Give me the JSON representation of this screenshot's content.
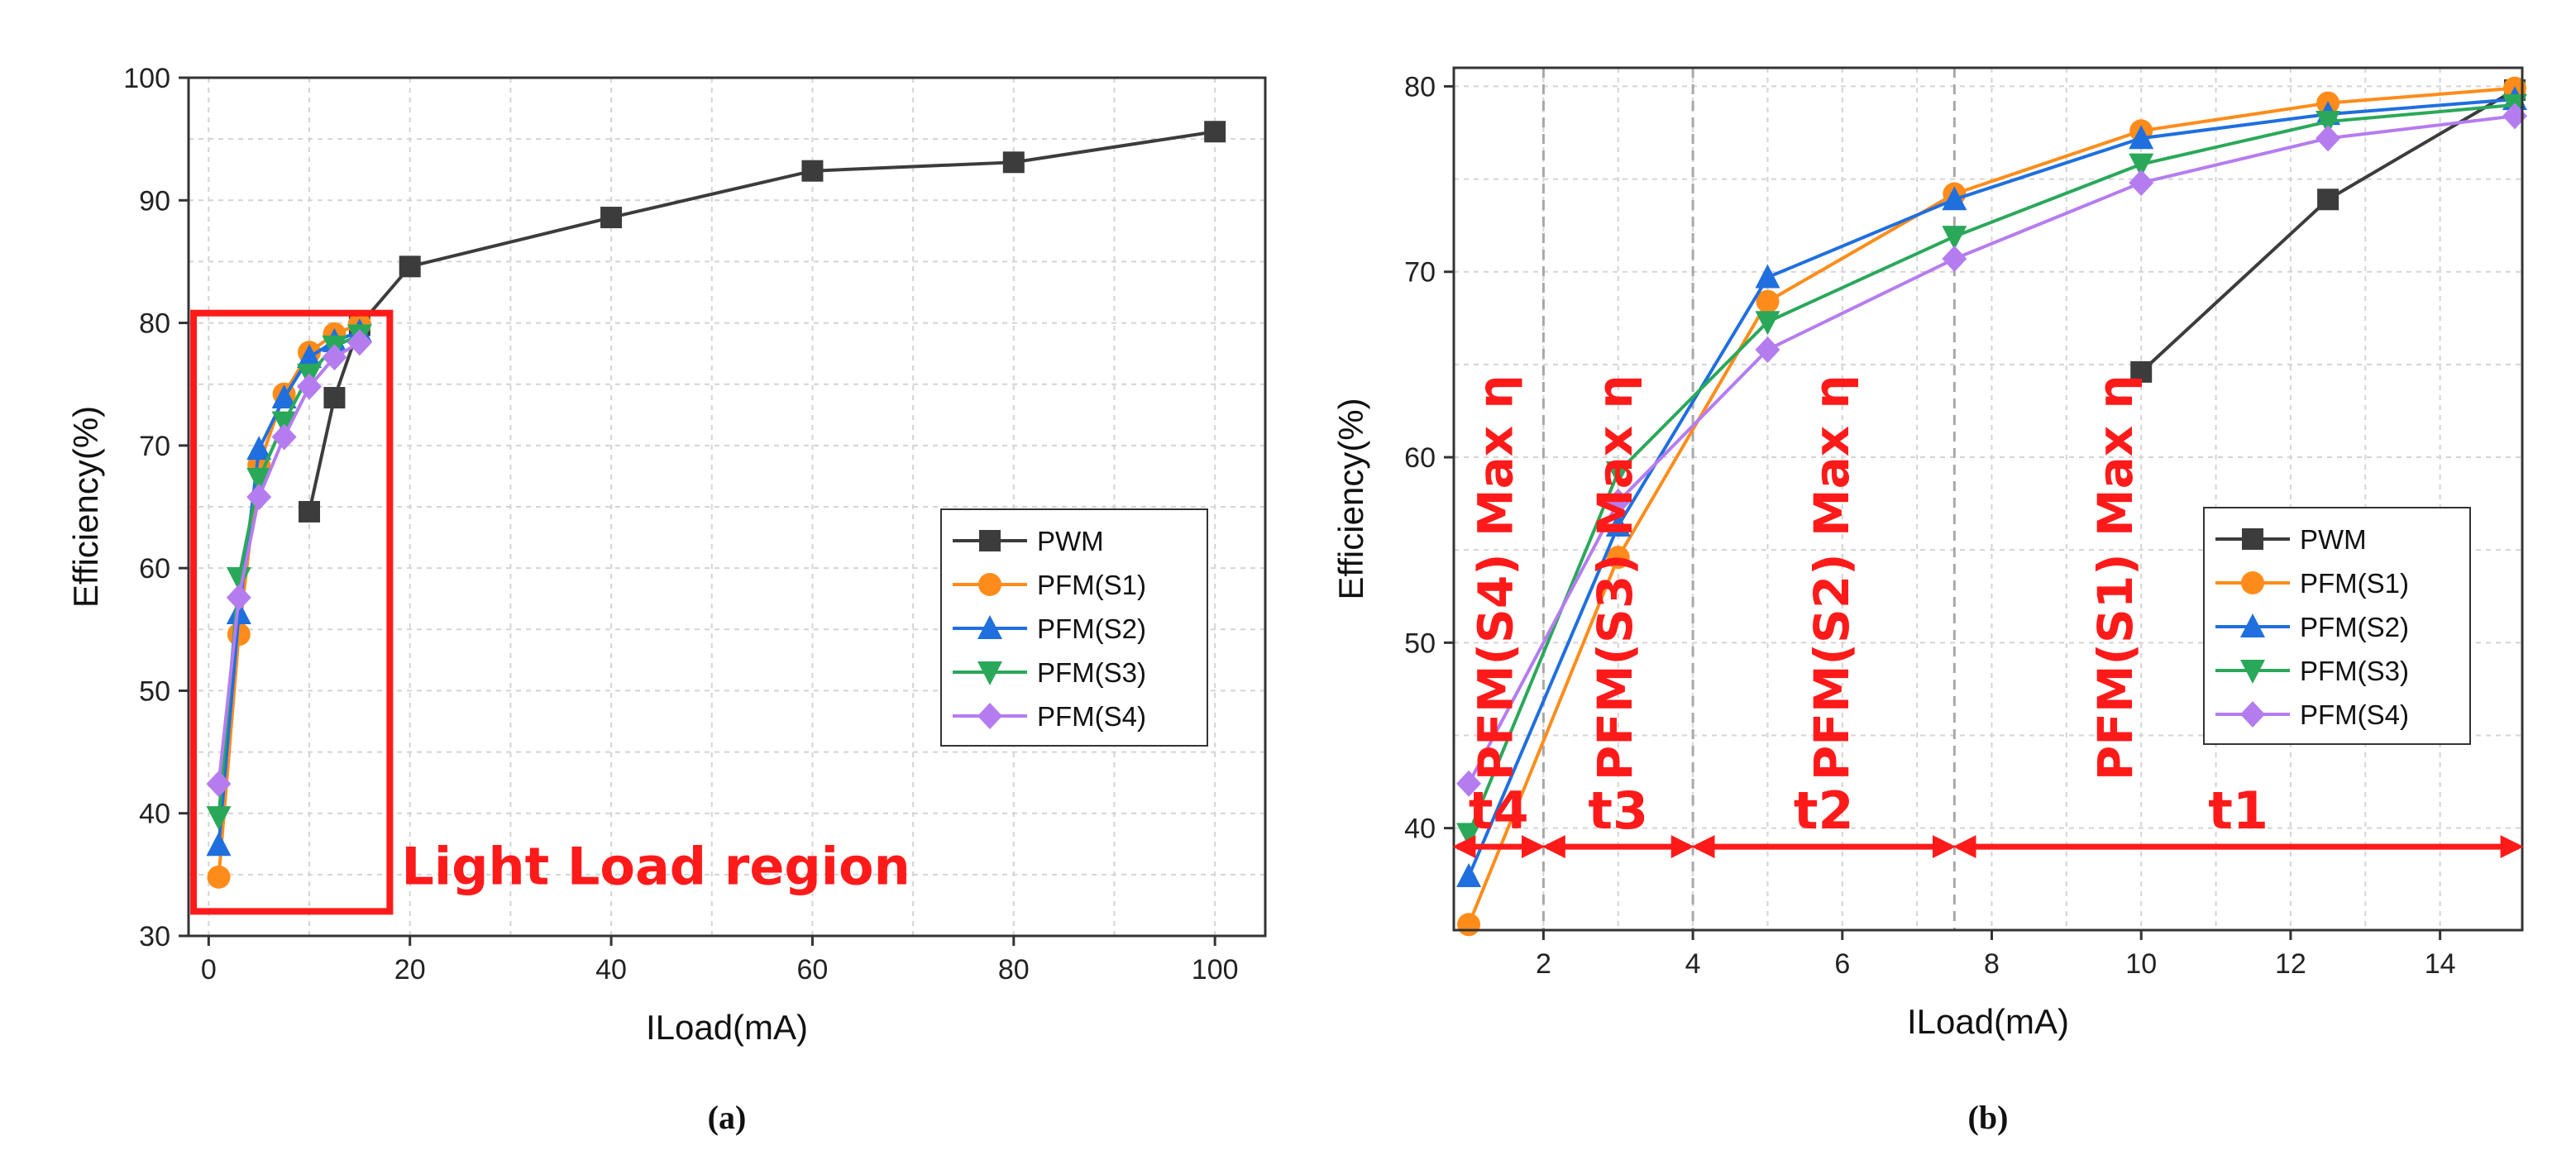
{
  "colors": {
    "PWM": "#3c3c3c",
    "PFM(S1)": "#ff8c1a",
    "PFM(S2)": "#1f6fdf",
    "PFM(S3)": "#2aa85a",
    "PFM(S4)": "#b57cf0",
    "annotation": "#ff1a1a"
  },
  "markers": {
    "PWM": "square",
    "PFM(S1)": "circle",
    "PFM(S2)": "triangle-up",
    "PFM(S3)": "triangle-down",
    "PFM(S4)": "diamond"
  },
  "chart_data": [
    {
      "type": "line",
      "caption": "(a)",
      "xlabel": "ILoad(mA)",
      "ylabel": "Efficiency(%)",
      "xlim": [
        -2,
        105
      ],
      "ylim": [
        30,
        100
      ],
      "xticks": [
        0,
        20,
        40,
        60,
        80,
        100
      ],
      "yticks": [
        30,
        40,
        50,
        60,
        70,
        80,
        90,
        100
      ],
      "grid": true,
      "legend": "center-right",
      "series": [
        {
          "name": "PWM",
          "x": [
            10,
            12.5,
            15,
            20,
            40,
            60,
            80,
            100
          ],
          "y": [
            64.6,
            73.9,
            79.8,
            84.6,
            88.6,
            92.4,
            93.1,
            95.6
          ]
        },
        {
          "name": "PFM(S1)",
          "x": [
            1,
            3,
            5,
            7.5,
            10,
            12.5,
            15
          ],
          "y": [
            34.8,
            54.6,
            68.4,
            74.2,
            77.6,
            79.1,
            79.9
          ]
        },
        {
          "name": "PFM(S2)",
          "x": [
            1,
            3,
            5,
            7.5,
            10,
            12.5,
            15
          ],
          "y": [
            37.4,
            56.3,
            69.7,
            73.9,
            77.2,
            78.5,
            79.3
          ]
        },
        {
          "name": "PFM(S3)",
          "x": [
            1,
            3,
            5,
            7.5,
            10,
            12.5,
            15
          ],
          "y": [
            39.7,
            59.2,
            67.3,
            71.9,
            75.8,
            78.1,
            79.0
          ]
        },
        {
          "name": "PFM(S4)",
          "x": [
            1,
            3,
            5,
            7.5,
            10,
            12.5,
            15
          ],
          "y": [
            42.4,
            57.6,
            65.8,
            70.7,
            74.8,
            77.2,
            78.4
          ]
        }
      ],
      "annotations": {
        "region_label": "Light Load region",
        "region_x": [
          -1.5,
          18
        ],
        "region_y": [
          32,
          80.8
        ]
      }
    },
    {
      "type": "line",
      "caption": "(b)",
      "xlabel": "ILoad(mA)",
      "ylabel": "Efficiency(%)",
      "xlim": [
        0.8,
        15.1
      ],
      "ylim": [
        34.5,
        81
      ],
      "xticks": [
        2,
        4,
        6,
        8,
        10,
        12,
        14
      ],
      "yticks": [
        40,
        50,
        60,
        70,
        80
      ],
      "grid": true,
      "legend": "center-right",
      "series": [
        {
          "name": "PWM",
          "x": [
            10,
            12.5,
            15
          ],
          "y": [
            64.6,
            73.9,
            79.8
          ]
        },
        {
          "name": "PFM(S1)",
          "x": [
            1,
            3,
            5,
            7.5,
            10,
            12.5,
            15
          ],
          "y": [
            34.8,
            54.6,
            68.4,
            74.2,
            77.6,
            79.1,
            79.9
          ]
        },
        {
          "name": "PFM(S2)",
          "x": [
            1,
            3,
            5,
            7.5,
            10,
            12.5,
            15
          ],
          "y": [
            37.4,
            56.3,
            69.7,
            73.9,
            77.2,
            78.5,
            79.3
          ]
        },
        {
          "name": "PFM(S3)",
          "x": [
            1,
            3,
            5,
            7.5,
            10,
            12.5,
            15
          ],
          "y": [
            39.7,
            59.2,
            67.3,
            71.9,
            75.8,
            78.1,
            79.0
          ]
        },
        {
          "name": "PFM(S4)",
          "x": [
            1,
            3,
            5,
            7.5,
            10,
            12.5,
            15
          ],
          "y": [
            42.4,
            57.6,
            65.8,
            70.7,
            74.8,
            77.2,
            78.4
          ]
        }
      ],
      "annotations": {
        "boundaries_x": [
          2,
          4,
          7.5
        ],
        "arrow_y": 39,
        "regions": [
          {
            "label": "t4",
            "x0": 0.8,
            "x1": 2,
            "max_label": "PFM(S4) Max η",
            "max_x": 1.4
          },
          {
            "label": "t3",
            "x0": 2,
            "x1": 4,
            "max_label": "PFM(S3) Max η",
            "max_x": 3.0
          },
          {
            "label": "t2",
            "x0": 4,
            "x1": 7.5,
            "max_label": "PFM(S2) Max η",
            "max_x": 5.9
          },
          {
            "label": "t1",
            "x0": 7.5,
            "x1": 15.1,
            "max_label": "PFM(S1) Max η",
            "max_x": 9.7
          }
        ]
      }
    }
  ]
}
